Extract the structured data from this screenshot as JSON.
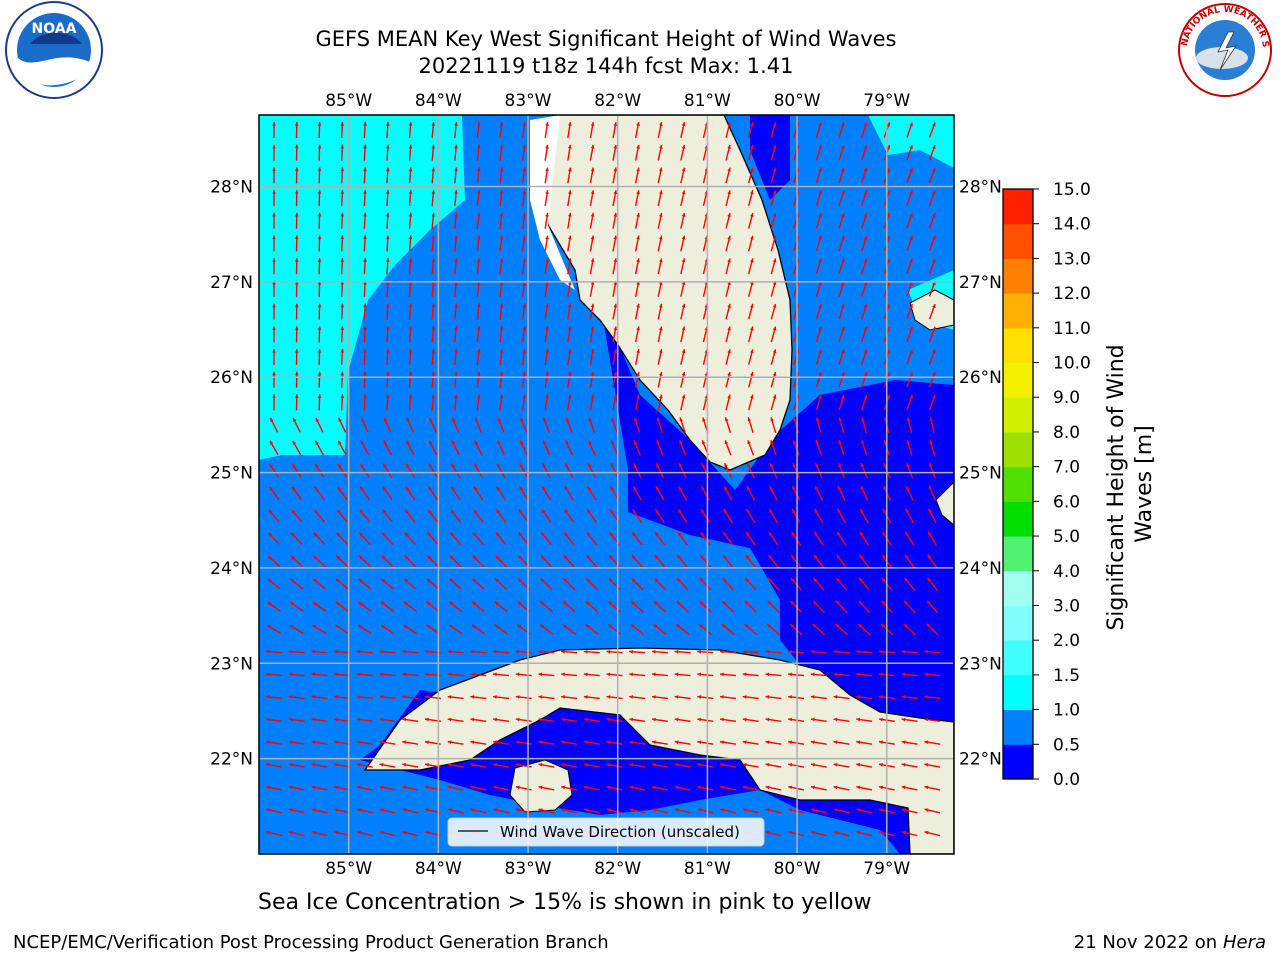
{
  "title": {
    "line1": "GEFS MEAN Key West Significant Height of Wind Waves",
    "line2": "20221119 t18z 144h fcst   Max: 1.41"
  },
  "subtitle": "Sea Ice Concentration > 15% is shown in pink to yellow",
  "footer": {
    "left": "NCEP/EMC/Verification Post Processing Product Generation Branch",
    "right_date": "21 Nov 2022 on",
    "right_machine": "Hera"
  },
  "logos": {
    "left": "NOAA",
    "right": "NATIONAL WEATHER SERVICE"
  },
  "legend": {
    "label": "Wind Wave Direction (unscaled)"
  },
  "colorbar": {
    "label": "Significant Height of Wind Waves [m]",
    "ticks": [
      "0.0",
      "0.5",
      "1.0",
      "1.5",
      "2.0",
      "3.0",
      "4.0",
      "5.0",
      "6.0",
      "7.0",
      "8.0",
      "9.0",
      "10.0",
      "11.0",
      "12.0",
      "13.0",
      "14.0",
      "15.0"
    ],
    "colors": [
      "#0000ff",
      "#0080ff",
      "#00ffff",
      "#40ffff",
      "#80ffff",
      "#a0fff0",
      "#50f070",
      "#00e000",
      "#50e000",
      "#a0e000",
      "#d0f000",
      "#f0f000",
      "#ffe000",
      "#ffb000",
      "#ff8000",
      "#ff5000",
      "#ff2000"
    ]
  },
  "chart_data": {
    "type": "map",
    "region": "Key West",
    "lon_ticks": [
      "85°W",
      "84°W",
      "83°W",
      "82°W",
      "81°W",
      "80°W",
      "79°W"
    ],
    "lat_ticks": [
      "28°N",
      "27°N",
      "26°N",
      "25°N",
      "24°N",
      "23°N",
      "22°N"
    ],
    "lon_values": [
      -85,
      -84,
      -83,
      -82,
      -81,
      -80,
      -79
    ],
    "lat_values": [
      28,
      27,
      26,
      25,
      24,
      23,
      22
    ],
    "lon_range": [
      -86.0,
      -78.25
    ],
    "lat_range": [
      21.0,
      28.75
    ],
    "max_value": 1.41,
    "units": "m",
    "grid": true,
    "colors": {
      "land": "#eeeedd",
      "arrow": "#ff0000",
      "grid": "#b0b0b0",
      "coast": "#000000"
    }
  }
}
